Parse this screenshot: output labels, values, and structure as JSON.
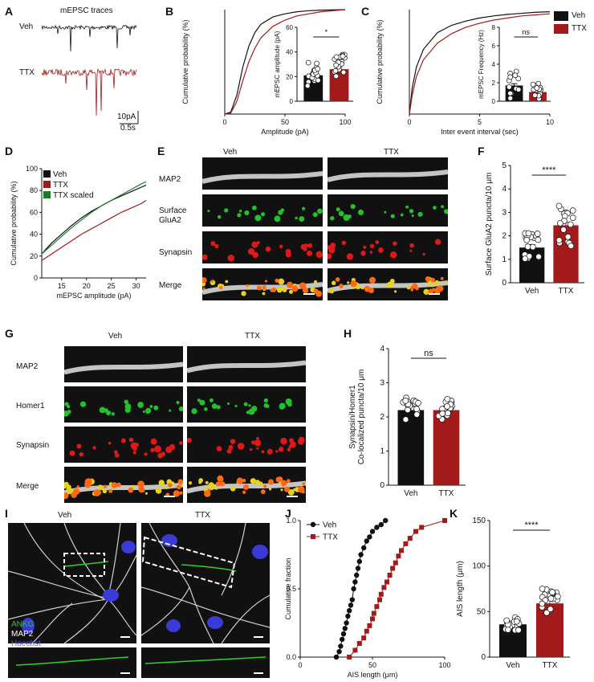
{
  "panels": {
    "A": "A",
    "B": "B",
    "C": "C",
    "D": "D",
    "E": "E",
    "F": "F",
    "G": "G",
    "H": "H",
    "I": "I",
    "J": "J",
    "K": "K"
  },
  "panelA": {
    "title": "mEPSC traces",
    "veh": "Veh",
    "ttx": "TTX",
    "scale_y": "10pA",
    "scale_x": "0.5s"
  },
  "legendTop": {
    "veh": "Veh",
    "ttx": "TTX"
  },
  "panelE": {
    "col_veh": "Veh",
    "col_ttx": "TTX",
    "rows": [
      "MAP2",
      "Surface\nGluA2",
      "Synapsin",
      "Merge"
    ]
  },
  "panelG": {
    "col_veh": "Veh",
    "col_ttx": "TTX",
    "rows": [
      "MAP2",
      "Homer1",
      "Synapsin",
      "Merge"
    ]
  },
  "panelI": {
    "col_veh": "Veh",
    "col_ttx": "TTX",
    "stain1": "ANKG",
    "stain2": "MAP2",
    "stain3": "Hoechst"
  },
  "colors": {
    "veh": "#111111",
    "ttx": "#a31a1a",
    "scaled": "#1e7a2a",
    "green": "#22c22a",
    "red": "#e01818",
    "blue": "#3a3ad8"
  },
  "chart_data": [
    {
      "id": "B",
      "type": "line",
      "xlabel": "Amplitude (pA)",
      "ylabel": "Cumulative probability (%)",
      "xlim": [
        0,
        100
      ],
      "ylim": [
        0,
        100
      ],
      "xticks": [
        "0",
        "50",
        "100"
      ],
      "series": [
        {
          "name": "Veh",
          "color": "#111111",
          "x": [
            0,
            5,
            10,
            15,
            20,
            25,
            30,
            40,
            50,
            60,
            70,
            80,
            100
          ],
          "y": [
            0,
            2,
            18,
            45,
            65,
            78,
            86,
            93,
            96,
            98,
            99,
            99.5,
            100
          ]
        },
        {
          "name": "TTX",
          "color": "#a31a1a",
          "x": [
            0,
            5,
            10,
            15,
            20,
            25,
            30,
            40,
            50,
            60,
            70,
            80,
            100
          ],
          "y": [
            0,
            1,
            12,
            32,
            50,
            63,
            73,
            84,
            90,
            94,
            96,
            98,
            100
          ]
        }
      ]
    },
    {
      "id": "B-inset",
      "type": "bar",
      "ylabel": "mEPSC amplitude (pA)",
      "ylim": [
        0,
        60
      ],
      "yticks": [
        "0",
        "20",
        "40",
        "60"
      ],
      "categories": [
        "Veh",
        "TTX"
      ],
      "values": [
        21,
        26
      ],
      "significance": "*"
    },
    {
      "id": "C",
      "type": "line",
      "xlabel": "Inter event interval (sec)",
      "ylabel": "Cumulative probability (%)",
      "xlim": [
        0,
        10
      ],
      "ylim": [
        0,
        100
      ],
      "xticks": [
        "0",
        "5",
        "10"
      ],
      "series": [
        {
          "name": "Veh",
          "color": "#111111",
          "x": [
            0,
            0.2,
            0.5,
            1,
            2,
            3,
            4,
            5,
            6,
            7,
            8,
            9,
            10
          ],
          "y": [
            0,
            25,
            45,
            62,
            78,
            85,
            89,
            92,
            94,
            95.5,
            96.5,
            97.5,
            98
          ]
        },
        {
          "name": "TTX",
          "color": "#a31a1a",
          "x": [
            0,
            0.2,
            0.5,
            1,
            2,
            3,
            4,
            5,
            6,
            7,
            8,
            9,
            10
          ],
          "y": [
            0,
            18,
            36,
            52,
            68,
            77,
            83,
            87,
            90,
            92,
            94,
            95,
            96
          ]
        }
      ]
    },
    {
      "id": "C-inset",
      "type": "bar",
      "ylabel": "mEPSC Frequency (Hz)",
      "ylim": [
        0,
        8
      ],
      "yticks": [
        "0",
        "2",
        "4",
        "6",
        "8"
      ],
      "categories": [
        "Veh",
        "TTX"
      ],
      "values": [
        1.7,
        1.0
      ],
      "significance": "ns"
    },
    {
      "id": "D",
      "type": "line",
      "xlabel": "mEPSC amplitude (pA)",
      "ylabel": "Cumulative probability (%)",
      "xlim": [
        11,
        32
      ],
      "ylim": [
        0,
        100
      ],
      "xticks": [
        "15",
        "20",
        "25",
        "30"
      ],
      "yticks": [
        "0",
        "20",
        "40",
        "60",
        "80",
        "100"
      ],
      "series": [
        {
          "name": "Veh",
          "color": "#111111",
          "x": [
            11,
            13,
            15,
            17,
            19,
            21,
            23,
            25,
            27,
            29,
            31,
            32
          ],
          "y": [
            22,
            32,
            40,
            48,
            55,
            61,
            66,
            71,
            75,
            79,
            83,
            85
          ]
        },
        {
          "name": "TTX",
          "color": "#a31a1a",
          "x": [
            11,
            13,
            15,
            17,
            19,
            21,
            23,
            25,
            27,
            29,
            31,
            32
          ],
          "y": [
            16,
            22,
            28,
            34,
            40,
            45,
            50,
            55,
            60,
            64,
            68,
            71
          ]
        },
        {
          "name": "TTX scaled",
          "color": "#1e7a2a",
          "x": [
            11,
            13,
            15,
            17,
            19,
            21,
            23,
            25,
            27,
            29,
            31,
            32
          ],
          "y": [
            22,
            30,
            38,
            46,
            53,
            60,
            66,
            71,
            76,
            81,
            86,
            88
          ]
        }
      ]
    },
    {
      "id": "F",
      "type": "bar",
      "ylabel": "Surface GluA2 puncta/10 μm",
      "ylim": [
        0,
        5
      ],
      "yticks": [
        "0",
        "1",
        "2",
        "3",
        "4",
        "5"
      ],
      "categories": [
        "Veh",
        "TTX"
      ],
      "values": [
        1.5,
        2.45
      ],
      "significance": "****"
    },
    {
      "id": "H",
      "type": "bar",
      "ylabel": "Synapsin/Homer1 Co-localized puncta/10 μm",
      "ylim": [
        0,
        4
      ],
      "yticks": [
        "0",
        "1",
        "2",
        "3",
        "4"
      ],
      "categories": [
        "Veh",
        "TTX"
      ],
      "values": [
        2.2,
        2.2
      ],
      "significance": "ns"
    },
    {
      "id": "J",
      "type": "scatter",
      "xlabel": "AIS length (μm)",
      "ylabel": "Cumulative fraction",
      "xlim": [
        0,
        100
      ],
      "ylim": [
        0,
        1.0
      ],
      "xticks": [
        "0",
        "50",
        "100"
      ],
      "yticks": [
        "0.0",
        "0.5",
        "1.0"
      ],
      "series": [
        {
          "name": "Veh",
          "color": "#111111",
          "x": [
            25,
            27,
            28,
            29,
            30,
            31,
            32,
            33,
            34,
            35,
            36,
            37,
            38,
            39,
            40,
            41,
            42,
            44,
            46,
            48,
            50,
            53,
            56,
            59
          ],
          "y": [
            0,
            0.04,
            0.08,
            0.13,
            0.17,
            0.21,
            0.25,
            0.3,
            0.34,
            0.38,
            0.42,
            0.5,
            0.55,
            0.6,
            0.65,
            0.7,
            0.75,
            0.8,
            0.85,
            0.88,
            0.92,
            0.95,
            0.97,
            1.0
          ]
        },
        {
          "name": "TTX",
          "color": "#a31a1a",
          "x": [
            34,
            38,
            41,
            44,
            46,
            48,
            50,
            51,
            53,
            55,
            56,
            58,
            60,
            62,
            64,
            66,
            68,
            70,
            73,
            76,
            80,
            84,
            100
          ],
          "y": [
            0,
            0.05,
            0.1,
            0.14,
            0.19,
            0.23,
            0.28,
            0.32,
            0.37,
            0.42,
            0.46,
            0.51,
            0.55,
            0.6,
            0.65,
            0.69,
            0.74,
            0.78,
            0.83,
            0.87,
            0.92,
            0.95,
            1.0
          ]
        }
      ]
    },
    {
      "id": "K",
      "type": "bar",
      "ylabel": "AIS length (μm)",
      "ylim": [
        0,
        150
      ],
      "yticks": [
        "0",
        "50",
        "100",
        "150"
      ],
      "categories": [
        "Veh",
        "TTX"
      ],
      "values": [
        36,
        59
      ],
      "significance": "****"
    }
  ]
}
